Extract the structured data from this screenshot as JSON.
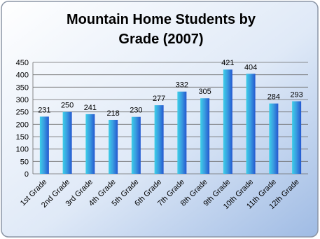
{
  "chart_data": {
    "type": "bar",
    "title": "Mountain Home Students by Grade (2007)",
    "categories": [
      "1st Grade",
      "2nd Grade",
      "3rd Grade",
      "4th Grade",
      "5th Grade",
      "6th Grade",
      "7th Grade",
      "8th Grade",
      "9th Grade",
      "10th Grade",
      "11th Grade",
      "12th Grade"
    ],
    "values": [
      231,
      250,
      241,
      218,
      230,
      277,
      332,
      305,
      421,
      404,
      284,
      293
    ],
    "color": "#2458d0",
    "ylim": [
      0,
      450
    ],
    "yticks": [
      0,
      50,
      100,
      150,
      200,
      250,
      300,
      350,
      400,
      450
    ],
    "grid": true
  }
}
